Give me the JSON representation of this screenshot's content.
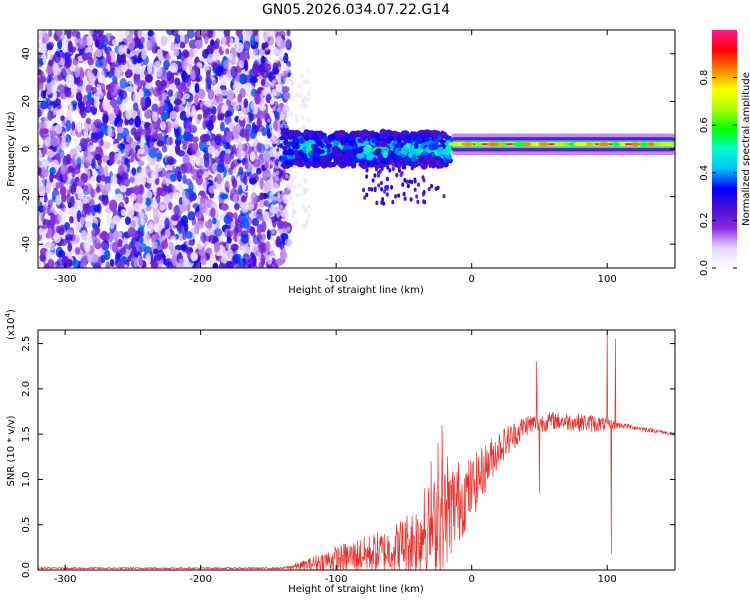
{
  "page": {
    "title": "GN05.2026.034.07.22.G14"
  },
  "chart_data": [
    {
      "type": "heatmap",
      "xlabel": "Height of straight line (km)",
      "ylabel": "Frequency (Hz)",
      "xlim": [
        -320,
        150
      ],
      "ylim": [
        -50,
        50
      ],
      "x_ticks": [
        -300,
        -200,
        -100,
        0,
        100
      ],
      "y_ticks": [
        -40,
        -20,
        0,
        20,
        40
      ],
      "colorbar": {
        "label": "Normalized spectral amplitude",
        "range": [
          0,
          1
        ],
        "ticks": [
          0.0,
          0.2,
          0.4,
          0.6,
          0.8
        ],
        "tick_labels": [
          "0.0",
          "0.2",
          "0.4",
          "0.6",
          "0.8"
        ],
        "colors": [
          "#ffffff",
          "#e8d8ff",
          "#8a2be2",
          "#4b0fd0",
          "#0000ff",
          "#00bfff",
          "#00ffcc",
          "#00ff00",
          "#aaff00",
          "#ffff00",
          "#ff8000",
          "#ff0000",
          "#ff1a8c"
        ]
      },
      "regions": [
        {
          "name": "noise",
          "x_range": [
            -320,
            -135
          ],
          "freq_range": [
            -50,
            50
          ],
          "amplitude_range": [
            0.05,
            0.35
          ]
        },
        {
          "name": "signal-onset",
          "x_range": [
            -140,
            -15
          ],
          "freq_center": 0,
          "freq_halfwidth": 7,
          "amplitude_range": [
            0.25,
            0.55
          ]
        },
        {
          "name": "tone",
          "x_range": [
            -15,
            150
          ],
          "freq_center": 2,
          "freq_halfwidth": 3,
          "amplitude_range": [
            0.7,
            1.0
          ]
        }
      ]
    },
    {
      "type": "line",
      "xlabel": "Height of straight line (km)",
      "ylabel": "SNR (10 * v/v)",
      "y_multiplier": "(x10",
      "y_multiplier_exp": "4",
      "y_multiplier_close": ")",
      "xlim": [
        -320,
        150
      ],
      "ylim": [
        0,
        2.65
      ],
      "x_ticks": [
        -300,
        -200,
        -100,
        0,
        100
      ],
      "y_ticks": [
        0.0,
        0.5,
        1.0,
        1.5,
        2.0,
        2.5
      ],
      "y_tick_labels": [
        "0.0",
        "0.5",
        "1.0",
        "1.5",
        "2.0",
        "2.5"
      ],
      "color": "#e8322d",
      "envelope": [
        {
          "x": -320,
          "base": 0.02,
          "jitter": 0.01
        },
        {
          "x": -140,
          "base": 0.02,
          "jitter": 0.01
        },
        {
          "x": -125,
          "base": 0.05,
          "jitter": 0.05
        },
        {
          "x": -100,
          "base": 0.12,
          "jitter": 0.15
        },
        {
          "x": -60,
          "base": 0.22,
          "jitter": 0.25
        },
        {
          "x": -40,
          "base": 0.35,
          "jitter": 0.4
        },
        {
          "x": -20,
          "base": 0.6,
          "jitter": 0.6
        },
        {
          "x": 0,
          "base": 0.9,
          "jitter": 0.35
        },
        {
          "x": 20,
          "base": 1.35,
          "jitter": 0.2
        },
        {
          "x": 40,
          "base": 1.6,
          "jitter": 0.12
        },
        {
          "x": 60,
          "base": 1.65,
          "jitter": 0.1
        },
        {
          "x": 90,
          "base": 1.62,
          "jitter": 0.1
        },
        {
          "x": 110,
          "base": 1.6,
          "jitter": 0.03
        },
        {
          "x": 150,
          "base": 1.5,
          "jitter": 0.02
        }
      ],
      "spikes": [
        {
          "x": -35,
          "y": 0.9
        },
        {
          "x": -30,
          "y": 1.2
        },
        {
          "x": -25,
          "y": 1.4
        },
        {
          "x": -22,
          "y": 1.6
        },
        {
          "x": -18,
          "y": 1.25
        },
        {
          "x": 48,
          "y": 2.3
        },
        {
          "x": 50,
          "y": 0.85
        },
        {
          "x": 100,
          "y": 2.65
        },
        {
          "x": 103,
          "y": 0.18
        },
        {
          "x": 106,
          "y": 2.55
        }
      ]
    }
  ]
}
